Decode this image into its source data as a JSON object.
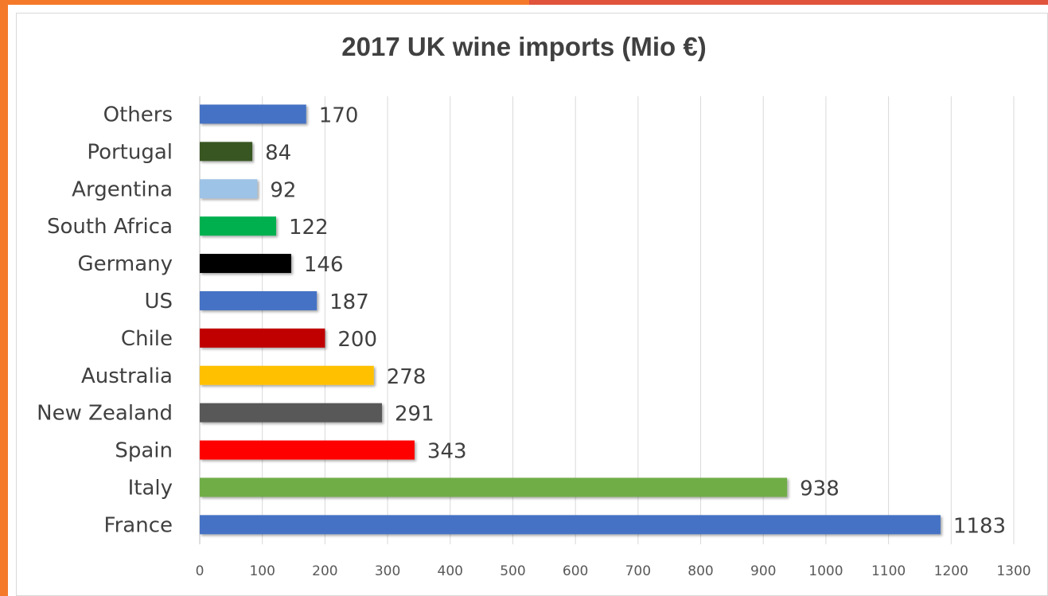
{
  "chart_data": {
    "type": "bar",
    "orientation": "horizontal",
    "title": "2017 UK wine imports (Mio €)",
    "xlabel": "",
    "ylabel": "",
    "xlim": [
      0,
      1300
    ],
    "x_ticks": [
      0,
      100,
      200,
      300,
      400,
      500,
      600,
      700,
      800,
      900,
      1000,
      1100,
      1200,
      1300
    ],
    "grid": "vertical",
    "legend": "none",
    "categories": [
      "Others",
      "Portugal",
      "Argentina",
      "South Africa",
      "Germany",
      "US",
      "Chile",
      "Australia",
      "New Zealand",
      "Spain",
      "Italy",
      "France"
    ],
    "values": [
      170,
      84,
      92,
      122,
      146,
      187,
      200,
      278,
      291,
      343,
      938,
      1183
    ],
    "data_labels": [
      "170",
      "84",
      "92",
      "122",
      "146",
      "187",
      "200",
      "278",
      "291",
      "343",
      "938",
      "1183"
    ],
    "bar_colors": [
      "#4472c4",
      "#375623",
      "#9dc3e6",
      "#00b050",
      "#000000",
      "#4472c4",
      "#c00000",
      "#ffc000",
      "#595959",
      "#ff0000",
      "#70ad47",
      "#4472c4"
    ]
  }
}
